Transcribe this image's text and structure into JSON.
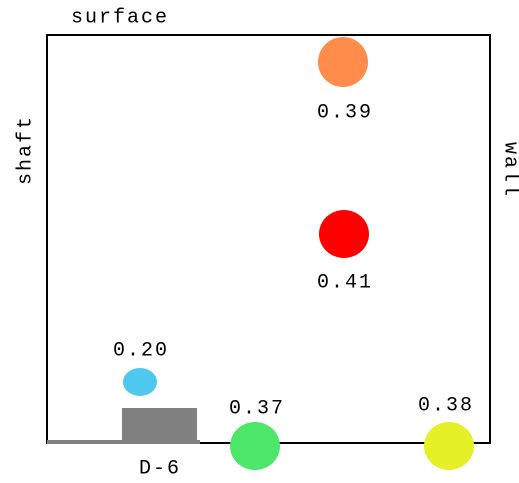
{
  "labels": {
    "top": "surface",
    "left": "shaft",
    "right": "wall"
  },
  "block": {
    "label": "D-6",
    "color": "#808080"
  },
  "nodes": [
    {
      "label": "0.39",
      "color": "#ff8c4a"
    },
    {
      "label": "0.41",
      "color": "#ff0000"
    },
    {
      "label": "0.20",
      "color": "#4fc8f0"
    },
    {
      "label": "0.37",
      "color": "#4ce66a"
    },
    {
      "label": "0.38",
      "color": "#e6f026"
    }
  ]
}
